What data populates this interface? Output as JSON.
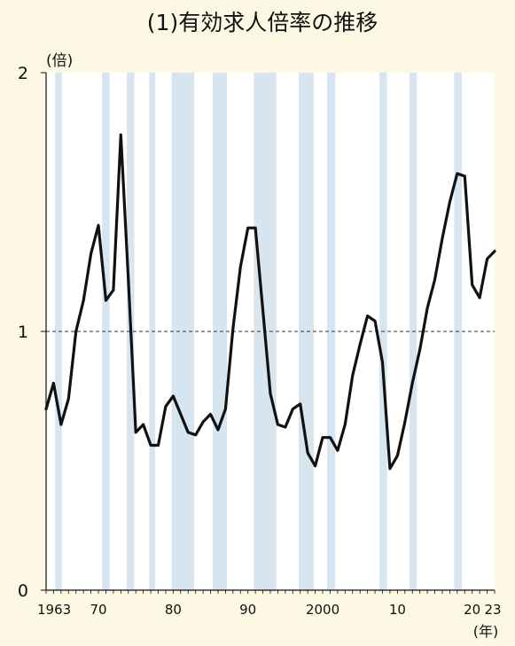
{
  "chart_data": {
    "type": "line",
    "title": "(1)有効求人倍率の推移",
    "ylabel_unit": "(倍)",
    "xlabel_unit": "(年)",
    "ylim": [
      0,
      2
    ],
    "xlim": [
      1963,
      2023
    ],
    "yticks": [
      {
        "v": 0,
        "label": "0"
      },
      {
        "v": 1,
        "label": "1"
      },
      {
        "v": 2,
        "label": "2"
      }
    ],
    "xticks": [
      {
        "v": 1963,
        "label": "1963"
      },
      {
        "v": 1970,
        "label": "70"
      },
      {
        "v": 1980,
        "label": "80"
      },
      {
        "v": 1990,
        "label": "90"
      },
      {
        "v": 2000,
        "label": "2000"
      },
      {
        "v": 2010,
        "label": "10"
      },
      {
        "v": 2020,
        "label": "20"
      },
      {
        "v": 2023,
        "label": "23"
      }
    ],
    "reference_line": 1.0,
    "grid": false,
    "background_color": "#ffffff",
    "band_color": "#d6e5f0",
    "line_color": "#111111",
    "recession_bands": [
      [
        1964.2,
        1965.1
      ],
      [
        1970.5,
        1971.5
      ],
      [
        1973.8,
        1974.8
      ],
      [
        1976.8,
        1977.6
      ],
      [
        1979.8,
        1982.8
      ],
      [
        1985.3,
        1987.2
      ],
      [
        1990.8,
        1993.8
      ],
      [
        1996.8,
        1998.8
      ],
      [
        2000.6,
        2001.7
      ],
      [
        2007.6,
        2008.6
      ],
      [
        2011.6,
        2012.6
      ],
      [
        2017.6,
        2018.6
      ]
    ],
    "series": [
      {
        "x": [
          1963,
          1964,
          1965,
          1966,
          1967,
          1968,
          1969,
          1970,
          1971,
          1972,
          1973,
          1974,
          1975,
          1976,
          1977,
          1978,
          1979,
          1980,
          1981,
          1982,
          1983,
          1984,
          1985,
          1986,
          1987,
          1988,
          1989,
          1990,
          1991,
          1992,
          1993,
          1994,
          1995,
          1996,
          1997,
          1998,
          1999,
          2000,
          2001,
          2002,
          2003,
          2004,
          2005,
          2006,
          2007,
          2008,
          2009,
          2010,
          2011,
          2012,
          2013,
          2014,
          2015,
          2016,
          2017,
          2018,
          2019,
          2020,
          2021,
          2022,
          2023
        ],
        "values": [
          0.7,
          0.8,
          0.64,
          0.74,
          1.0,
          1.12,
          1.3,
          1.41,
          1.12,
          1.16,
          1.76,
          1.2,
          0.61,
          0.64,
          0.56,
          0.56,
          0.71,
          0.75,
          0.68,
          0.61,
          0.6,
          0.65,
          0.68,
          0.62,
          0.7,
          1.01,
          1.25,
          1.4,
          1.4,
          1.08,
          0.76,
          0.64,
          0.63,
          0.7,
          0.72,
          0.53,
          0.48,
          0.59,
          0.59,
          0.54,
          0.64,
          0.83,
          0.95,
          1.06,
          1.04,
          0.88,
          0.47,
          0.52,
          0.65,
          0.8,
          0.93,
          1.09,
          1.2,
          1.36,
          1.5,
          1.61,
          1.6,
          1.18,
          1.13,
          1.28,
          1.31
        ]
      }
    ]
  }
}
